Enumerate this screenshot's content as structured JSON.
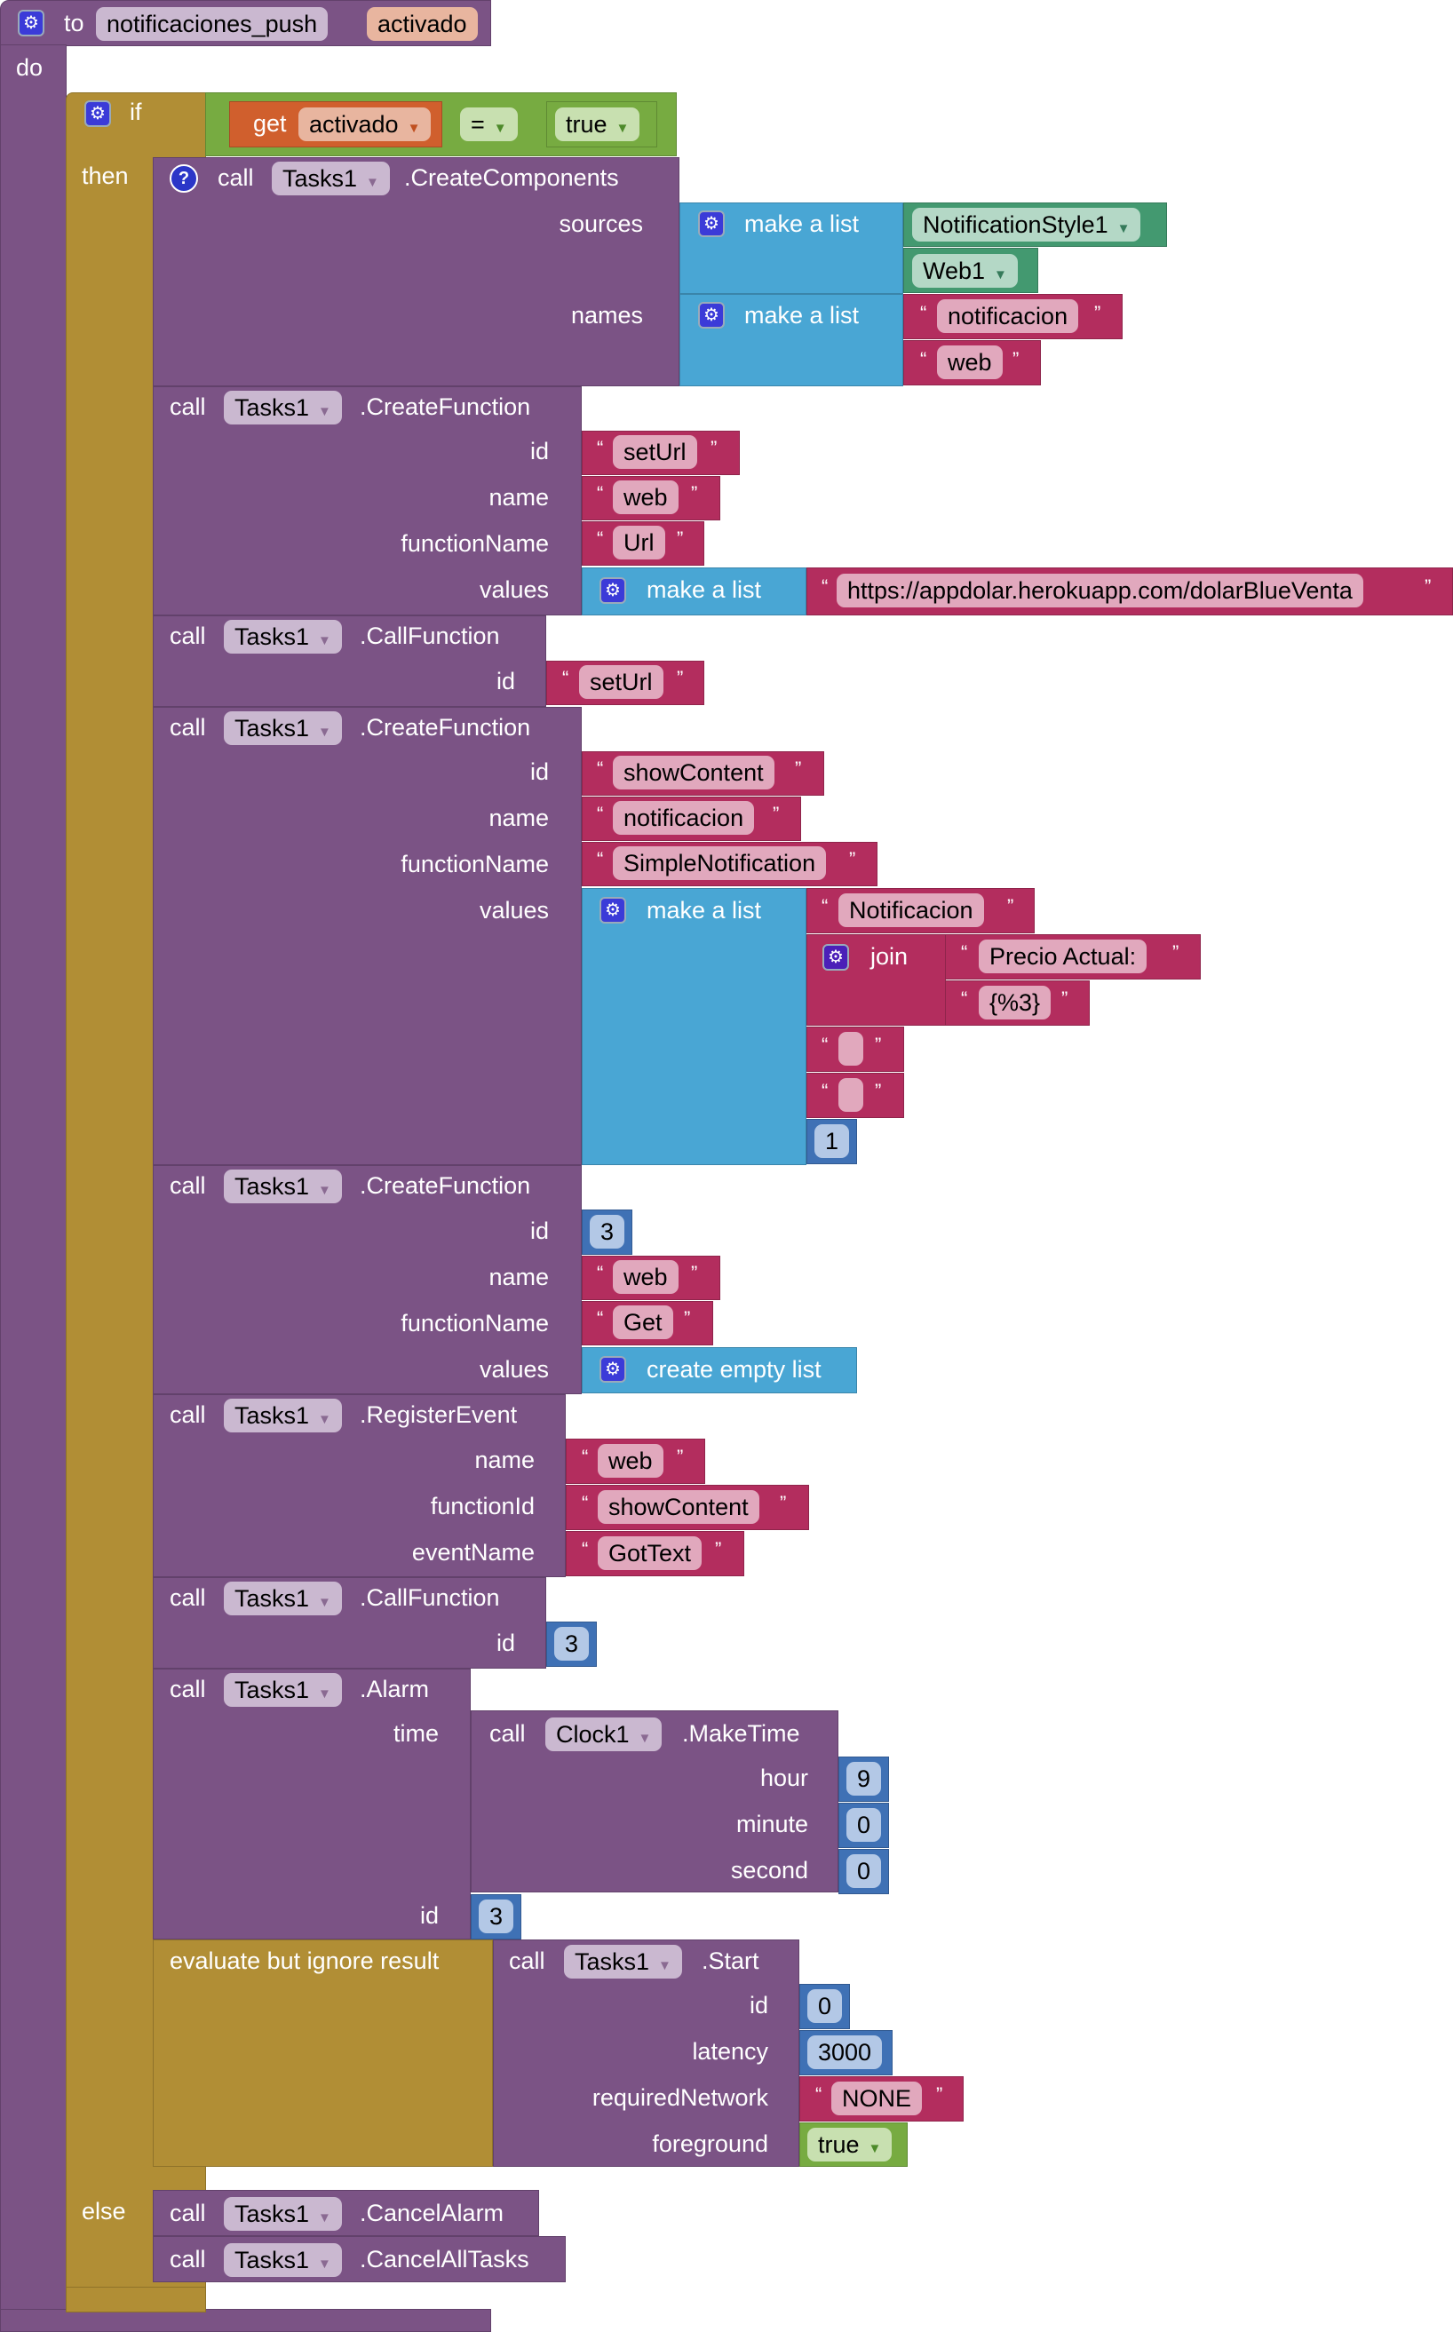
{
  "procedure": {
    "to_label": "to",
    "name": "notificaciones_push",
    "param": "activado",
    "do_label": "do"
  },
  "if_block": {
    "if_label": "if",
    "then_label": "then",
    "else_label": "else",
    "condition": {
      "get_label": "get",
      "var": "activado",
      "op": "=",
      "value": "true"
    }
  },
  "create_components": {
    "call": "call",
    "component": "Tasks1",
    "method": ".CreateComponents",
    "sources_label": "sources",
    "names_label": "names",
    "make_list": "make a list",
    "sources": [
      "NotificationStyle1",
      "Web1"
    ],
    "names": [
      "notificacion",
      "web"
    ]
  },
  "cf1": {
    "call": "call",
    "component": "Tasks1",
    "method": ".CreateFunction",
    "labels": [
      "id",
      "name",
      "functionName",
      "values"
    ],
    "id": "setUrl",
    "name": "web",
    "functionName": "Url",
    "make_list": "make a list",
    "url": "https://appdolar.herokuapp.com/dolarBlueVenta"
  },
  "callf1": {
    "call": "call",
    "component": "Tasks1",
    "method": ".CallFunction",
    "id_label": "id",
    "id": "setUrl"
  },
  "cf2": {
    "call": "call",
    "component": "Tasks1",
    "method": ".CreateFunction",
    "labels": [
      "id",
      "name",
      "functionName",
      "values"
    ],
    "id": "showContent",
    "name": "notificacion",
    "functionName": "SimpleNotification",
    "make_list": "make a list",
    "v1": "Notificacion",
    "join": "join",
    "j1": "Precio Actual:",
    "j2": "{%3}",
    "v5": "1"
  },
  "cf3": {
    "call": "call",
    "component": "Tasks1",
    "method": ".CreateFunction",
    "labels": [
      "id",
      "name",
      "functionName",
      "values"
    ],
    "id": "3",
    "name": "web",
    "functionName": "Get",
    "values": "create empty list"
  },
  "reg": {
    "call": "call",
    "component": "Tasks1",
    "method": ".RegisterEvent",
    "labels": [
      "name",
      "functionId",
      "eventName"
    ],
    "name": "web",
    "functionId": "showContent",
    "eventName": "GotText"
  },
  "callf2": {
    "call": "call",
    "component": "Tasks1",
    "method": ".CallFunction",
    "id_label": "id",
    "id": "3"
  },
  "alarm": {
    "call": "call",
    "component": "Tasks1",
    "method": ".Alarm",
    "time_label": "time",
    "id_label": "id",
    "id": "3",
    "clock": {
      "call": "call",
      "component": "Clock1",
      "method": ".MakeTime",
      "labels": [
        "hour",
        "minute",
        "second"
      ],
      "values": [
        "9",
        "0",
        "0"
      ]
    }
  },
  "evaluate": {
    "label": "evaluate but ignore result",
    "start": {
      "call": "call",
      "component": "Tasks1",
      "method": ".Start",
      "labels": [
        "id",
        "latency",
        "requiredNetwork",
        "foreground"
      ],
      "id": "0",
      "latency": "3000",
      "requiredNetwork": "NONE",
      "foreground": "true"
    }
  },
  "else_calls": [
    {
      "call": "call",
      "component": "Tasks1",
      "method": ".CancelAlarm"
    },
    {
      "call": "call",
      "component": "Tasks1",
      "method": ".CancelAllTasks"
    }
  ],
  "quotes": {
    "open": "“",
    "close": "”"
  },
  "icons": {
    "gear": "⚙",
    "help": "?",
    "dropdown": "▼"
  }
}
